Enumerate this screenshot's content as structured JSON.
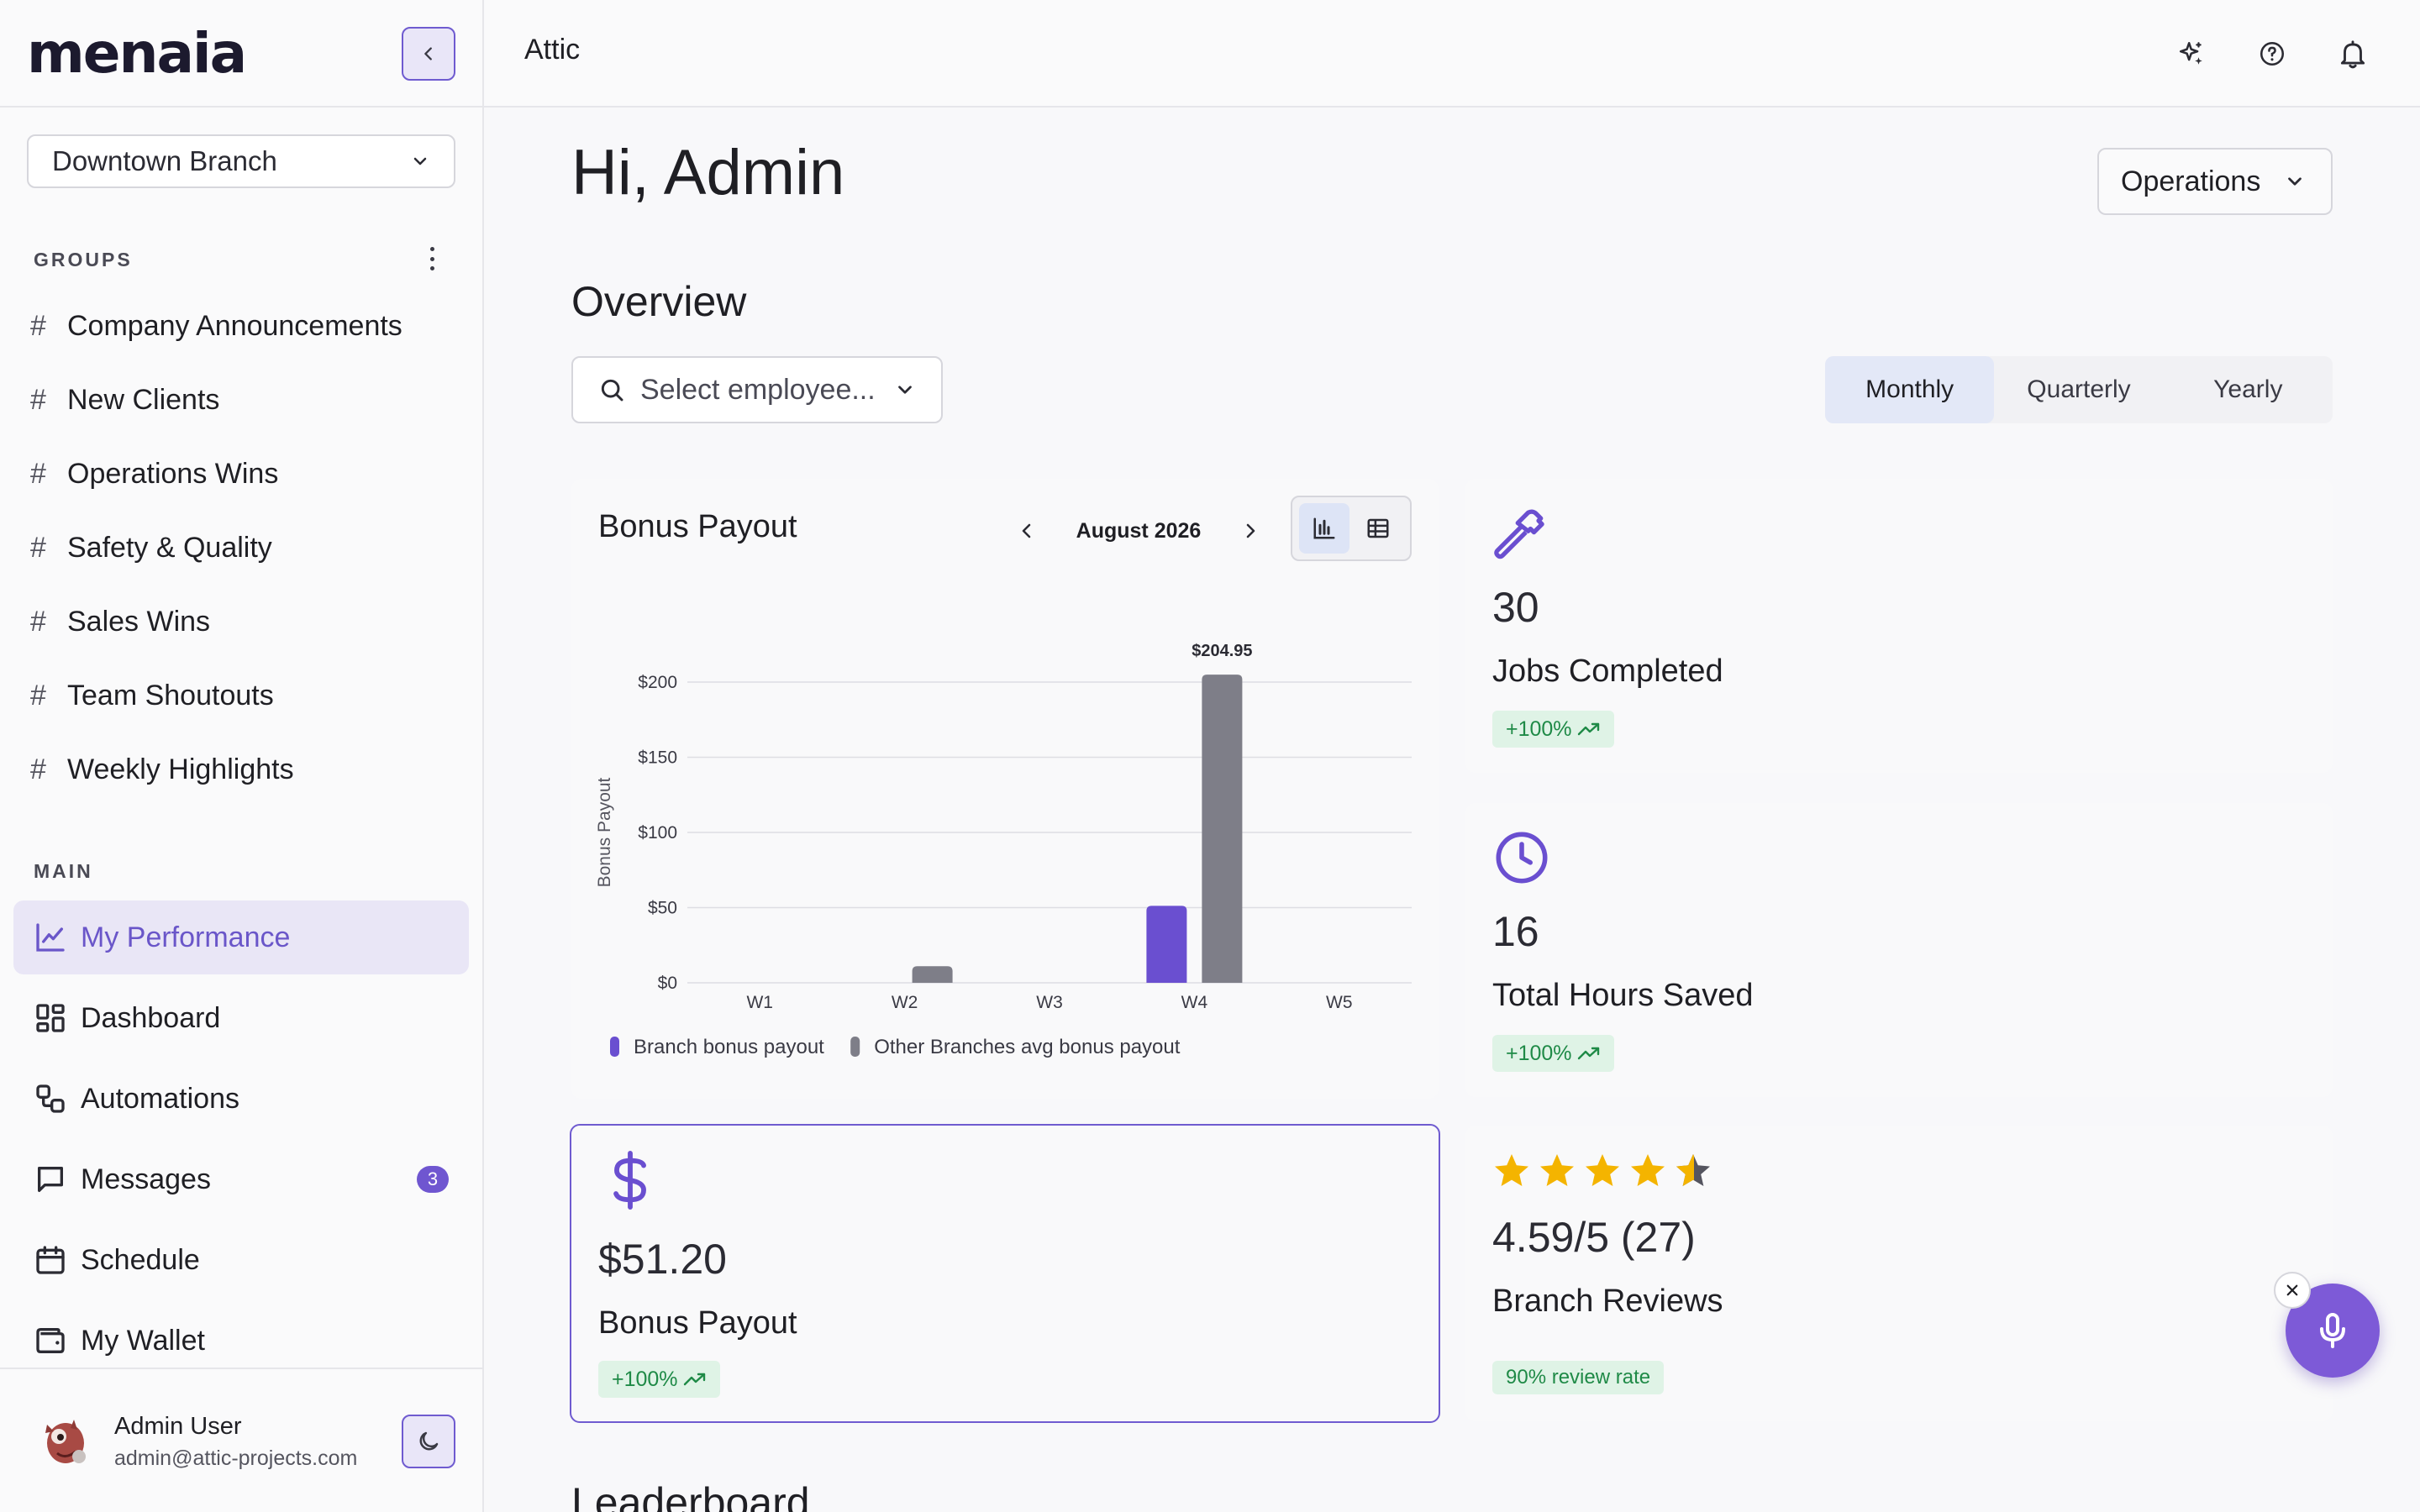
{
  "app": {
    "logo_text": "menaia",
    "breadcrumb": "Attic"
  },
  "sidebar": {
    "branch": "Downtown Branch",
    "groups_label": "GROUPS",
    "groups": [
      {
        "label": "Company Announcements"
      },
      {
        "label": "New Clients"
      },
      {
        "label": "Operations Wins"
      },
      {
        "label": "Safety & Quality"
      },
      {
        "label": "Sales Wins"
      },
      {
        "label": "Team Shoutouts"
      },
      {
        "label": "Weekly Highlights"
      }
    ],
    "main_label": "MAIN",
    "nav": [
      {
        "label": "My Performance",
        "icon": "chart-line-icon",
        "active": true
      },
      {
        "label": "Dashboard",
        "icon": "dashboard-icon"
      },
      {
        "label": "Automations",
        "icon": "automations-icon"
      },
      {
        "label": "Messages",
        "icon": "message-icon",
        "badge": "3"
      },
      {
        "label": "Schedule",
        "icon": "calendar-icon"
      },
      {
        "label": "My Wallet",
        "icon": "wallet-icon"
      }
    ],
    "user": {
      "name": "Admin User",
      "email": "admin@attic-projects.com"
    }
  },
  "header": {
    "icons": [
      "sparkle-icon",
      "help-icon",
      "bell-icon"
    ]
  },
  "main": {
    "greeting": "Hi, Admin",
    "role_select": "Operations",
    "overview_title": "Overview",
    "employee_placeholder": "Select employee...",
    "periods": [
      "Monthly",
      "Quarterly",
      "Yearly"
    ],
    "active_period": "Monthly",
    "leaderboard_title": "Leaderboard"
  },
  "chart_card": {
    "title": "Bonus Payout",
    "month": "August 2026"
  },
  "chart_data": {
    "type": "bar",
    "title": "Bonus Payout",
    "ylabel": "Bonus Payout",
    "xlabel": "",
    "categories": [
      "W1",
      "W2",
      "W3",
      "W4",
      "W5"
    ],
    "ylim": [
      0,
      200
    ],
    "yticks": [
      "$0",
      "$50",
      "$100",
      "$150",
      "$200"
    ],
    "series": [
      {
        "name": "Branch bonus payout",
        "color": "#6a4fd0",
        "values": [
          0,
          0,
          0,
          51.2,
          0
        ]
      },
      {
        "name": "Other Branches avg bonus payout",
        "color": "#7e7e88",
        "values": [
          0,
          11,
          0,
          204.95,
          0
        ]
      }
    ],
    "data_labels": [
      {
        "series": 1,
        "index": 3,
        "text": "$204.95"
      }
    ],
    "grid": true,
    "legend": "bottom-left"
  },
  "stats": {
    "jobs": {
      "value": "30",
      "label": "Jobs Completed",
      "trend": "+100%",
      "icon": "hammer-icon"
    },
    "hours": {
      "value": "16",
      "label": "Total Hours Saved",
      "trend": "+100%",
      "icon": "clock-icon"
    },
    "bonus": {
      "value": "$51.20",
      "label": "Bonus Payout",
      "trend": "+100%",
      "icon": "dollar-icon"
    },
    "reviews": {
      "value": "4.59/5 (27)",
      "label": "Branch Reviews",
      "rate": "90% review rate",
      "rating": 4.59,
      "max": 5
    }
  }
}
